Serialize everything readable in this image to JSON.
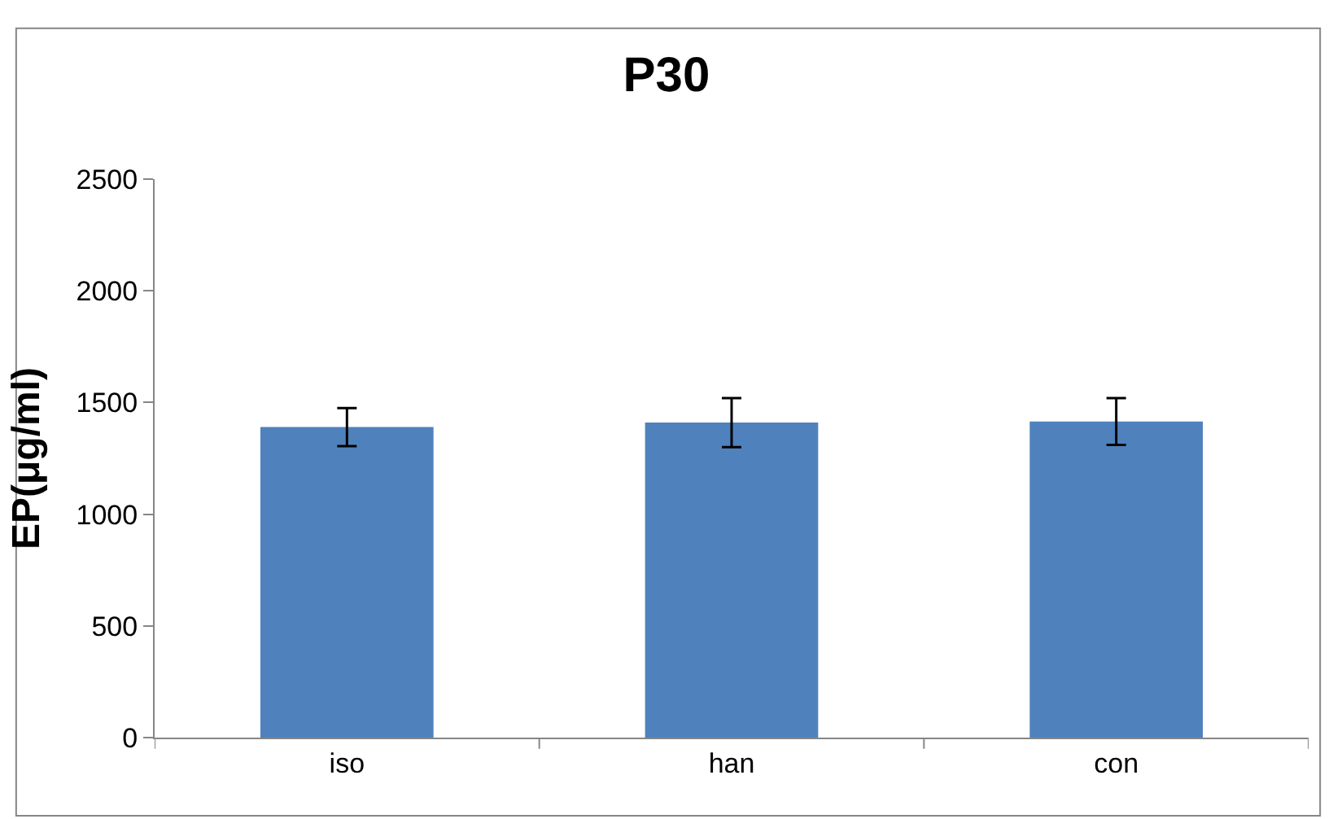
{
  "chart_data": {
    "type": "bar",
    "title": "P30",
    "ylabel": "EP(μg/ml)",
    "categories": [
      "iso",
      "han",
      "con"
    ],
    "values": [
      1390,
      1410,
      1415
    ],
    "errors": [
      85,
      110,
      105
    ],
    "color": "#4f81bd",
    "ylim": [
      0,
      2500
    ],
    "yticks": [
      0,
      500,
      1000,
      1500,
      2000,
      2500
    ]
  }
}
